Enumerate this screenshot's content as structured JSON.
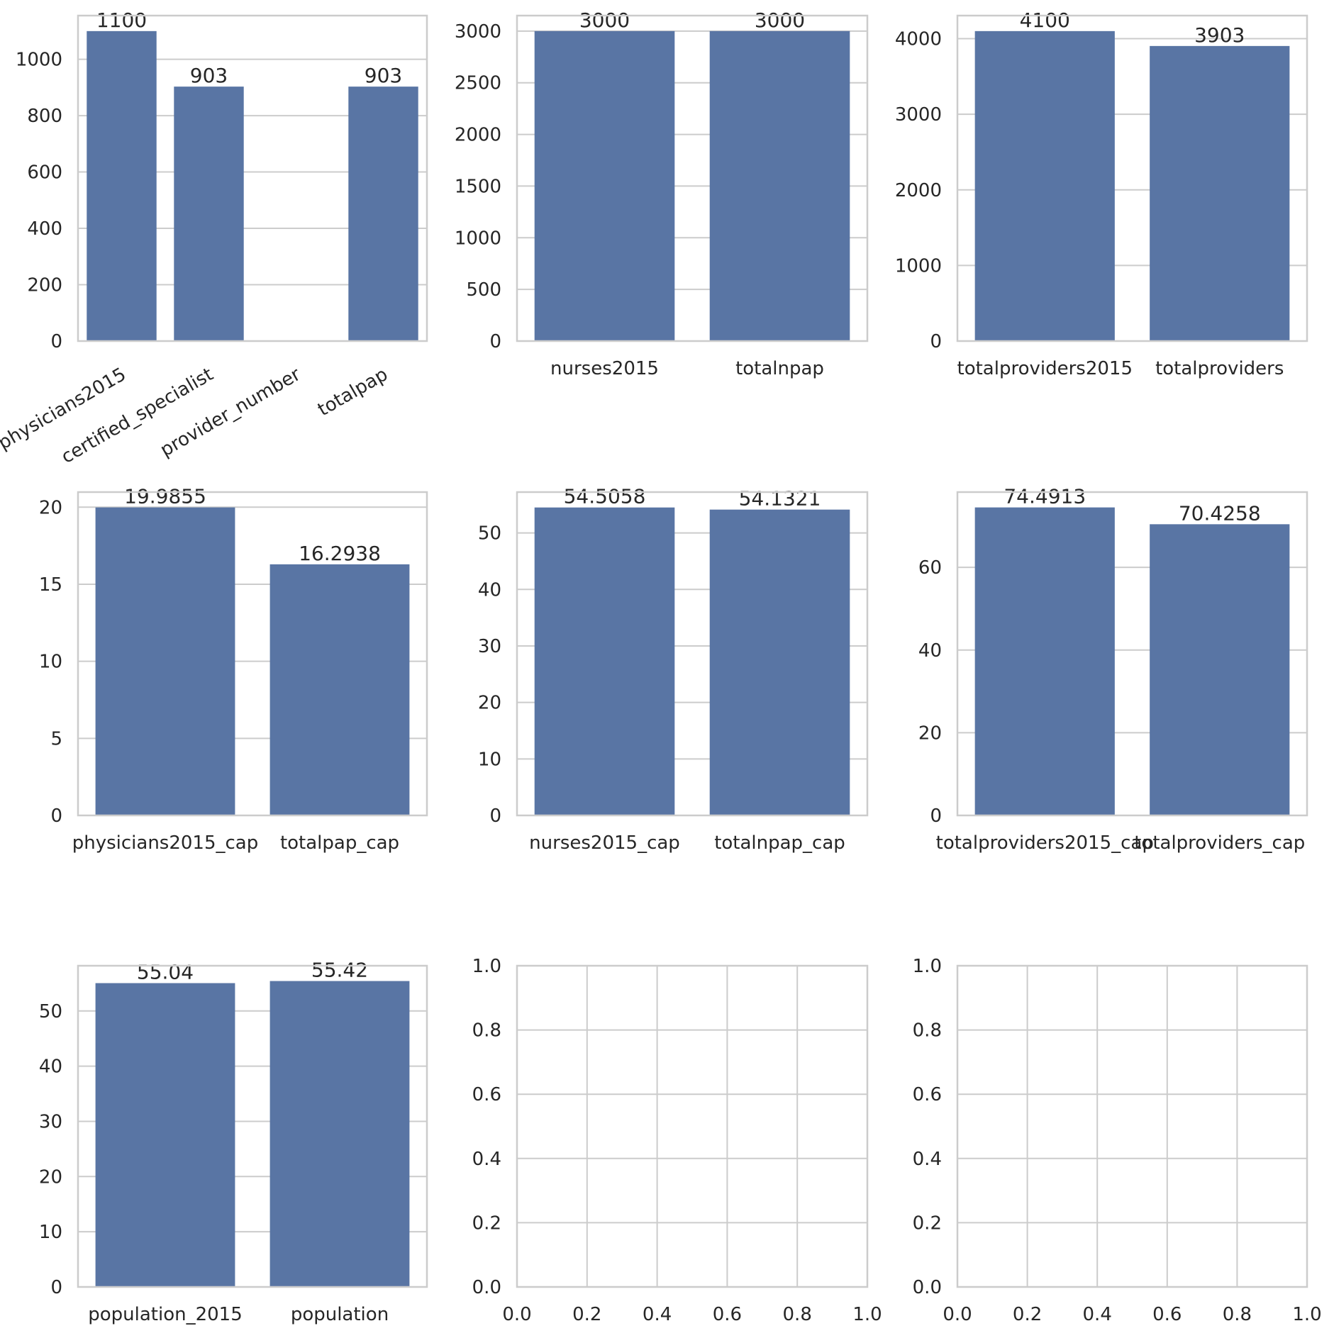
{
  "style": {
    "bar_color": "#5975a4",
    "grid_color": "#cccccc",
    "text_color": "#262626",
    "background": "#ffffff"
  },
  "chart_data": [
    {
      "type": "bar",
      "categories": [
        "physicians2015",
        "certified_specialist",
        "provider_number",
        "totalpap"
      ],
      "values": [
        1100,
        903,
        null,
        903
      ],
      "labels": [
        "1100",
        "903",
        null,
        "903"
      ],
      "ylim": [
        0,
        1155
      ],
      "yticks": [
        0,
        200,
        400,
        600,
        800,
        1000
      ],
      "tick_rotation": 30,
      "grid": true
    },
    {
      "type": "bar",
      "categories": [
        "nurses2015",
        "totalnpap"
      ],
      "values": [
        3000,
        3000
      ],
      "labels": [
        "3000",
        "3000"
      ],
      "ylim": [
        0,
        3150
      ],
      "yticks": [
        0,
        500,
        1000,
        1500,
        2000,
        2500,
        3000
      ],
      "grid": true
    },
    {
      "type": "bar",
      "categories": [
        "totalproviders2015",
        "totalproviders"
      ],
      "values": [
        4100,
        3903
      ],
      "labels": [
        "4100",
        "3903"
      ],
      "ylim": [
        0,
        4305
      ],
      "yticks": [
        0,
        1000,
        2000,
        3000,
        4000
      ],
      "grid": true
    },
    {
      "type": "bar",
      "categories": [
        "physicians2015_cap",
        "totalpap_cap"
      ],
      "values": [
        19.9855,
        16.2938
      ],
      "labels": [
        "19.9855",
        "16.2938"
      ],
      "ylim": [
        0,
        20.98
      ],
      "yticks": [
        0,
        5,
        10,
        15,
        20
      ],
      "grid": true
    },
    {
      "type": "bar",
      "categories": [
        "nurses2015_cap",
        "totalnpap_cap"
      ],
      "values": [
        54.5058,
        54.1321
      ],
      "labels": [
        "54.5058",
        "54.1321"
      ],
      "ylim": [
        0,
        57.23
      ],
      "yticks": [
        0,
        10,
        20,
        30,
        40,
        50
      ],
      "grid": true
    },
    {
      "type": "bar",
      "categories": [
        "totalproviders2015_cap",
        "totalproviders_cap"
      ],
      "values": [
        74.4913,
        70.4258
      ],
      "labels": [
        "74.4913",
        "70.4258"
      ],
      "ylim": [
        0,
        78.2
      ],
      "yticks": [
        0,
        20,
        40,
        60
      ],
      "grid": true
    },
    {
      "type": "bar",
      "categories": [
        "population_2015",
        "population"
      ],
      "values": [
        55.04,
        55.42
      ],
      "labels": [
        "55.04",
        "55.42"
      ],
      "ylim": [
        0,
        58.19
      ],
      "yticks": [
        0,
        10,
        20,
        30,
        40,
        50
      ],
      "grid": true
    },
    {
      "type": "empty",
      "xlim": [
        0,
        1
      ],
      "ylim": [
        0,
        1
      ],
      "xticks": [
        "0.0",
        "0.2",
        "0.4",
        "0.6",
        "0.8",
        "1.0"
      ],
      "yticks": [
        "0.0",
        "0.2",
        "0.4",
        "0.6",
        "0.8",
        "1.0"
      ],
      "grid": true
    },
    {
      "type": "empty",
      "xlim": [
        0,
        1
      ],
      "ylim": [
        0,
        1
      ],
      "xticks": [
        "0.0",
        "0.2",
        "0.4",
        "0.6",
        "0.8",
        "1.0"
      ],
      "yticks": [
        "0.0",
        "0.2",
        "0.4",
        "0.6",
        "0.8",
        "1.0"
      ],
      "grid": true
    }
  ]
}
